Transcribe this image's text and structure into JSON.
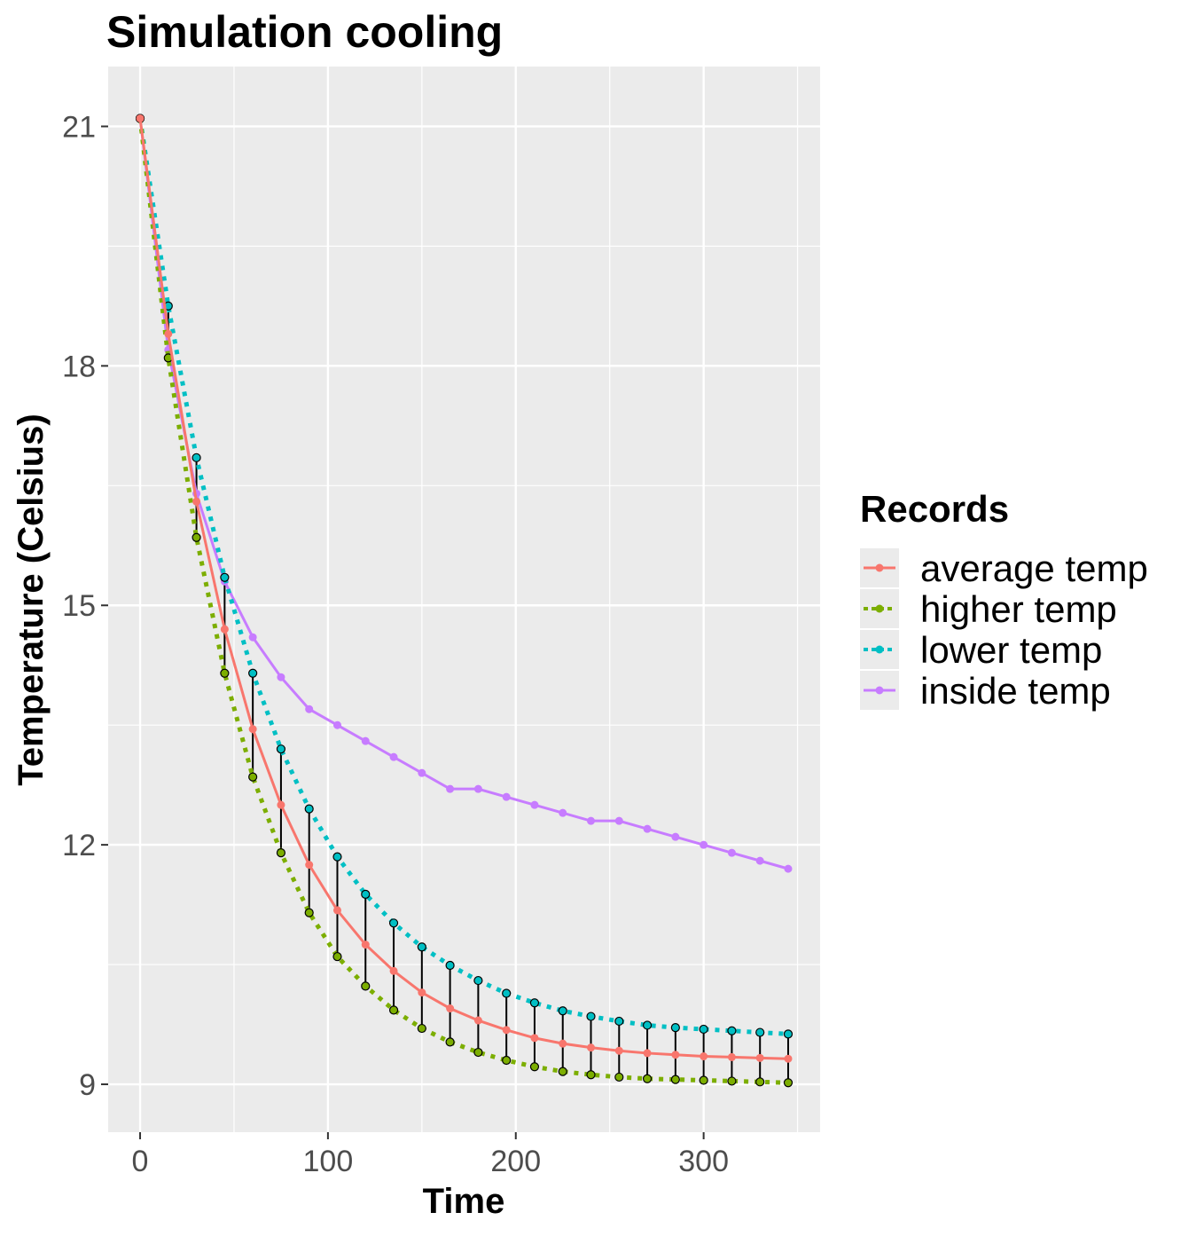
{
  "chart_data": {
    "type": "line",
    "title": "Simulation cooling",
    "xlabel": "Time",
    "ylabel": "Temperature (Celsius)",
    "xlim": [
      -17,
      362
    ],
    "ylim": [
      8.4,
      21.75
    ],
    "x_ticks": [
      0,
      100,
      200,
      300
    ],
    "y_ticks": [
      9,
      12,
      15,
      18,
      21
    ],
    "grid": true,
    "legend": {
      "title": "Records",
      "position": "right"
    },
    "x": [
      0,
      15,
      30,
      45,
      60,
      75,
      90,
      105,
      120,
      135,
      150,
      165,
      180,
      195,
      210,
      225,
      240,
      255,
      270,
      285,
      300,
      315,
      330,
      345
    ],
    "series": [
      {
        "name": "average temp",
        "color": "#f8766d",
        "style": "solid",
        "values": [
          21.1,
          18.4,
          16.3,
          14.7,
          13.45,
          12.5,
          11.75,
          11.18,
          10.75,
          10.42,
          10.15,
          9.95,
          9.8,
          9.68,
          9.58,
          9.51,
          9.46,
          9.42,
          9.39,
          9.37,
          9.35,
          9.34,
          9.33,
          9.32
        ]
      },
      {
        "name": "higher temp",
        "color": "#7cae00",
        "style": "dotted",
        "values": [
          21.1,
          18.1,
          15.85,
          14.15,
          12.85,
          11.9,
          11.15,
          10.6,
          10.23,
          9.93,
          9.7,
          9.53,
          9.4,
          9.3,
          9.22,
          9.16,
          9.12,
          9.09,
          9.07,
          9.06,
          9.05,
          9.04,
          9.03,
          9.02
        ]
      },
      {
        "name": "lower temp",
        "color": "#00bfc4",
        "style": "dotted",
        "values": [
          21.1,
          18.75,
          16.85,
          15.35,
          14.15,
          13.2,
          12.45,
          11.85,
          11.38,
          11.02,
          10.72,
          10.49,
          10.3,
          10.14,
          10.02,
          9.92,
          9.85,
          9.79,
          9.74,
          9.71,
          9.69,
          9.67,
          9.65,
          9.63
        ]
      },
      {
        "name": "inside temp",
        "color": "#c77cff",
        "style": "solid",
        "values": [
          21.1,
          18.2,
          16.4,
          15.3,
          14.6,
          14.1,
          13.7,
          13.5,
          13.3,
          13.1,
          12.9,
          12.7,
          12.7,
          12.6,
          12.5,
          12.4,
          12.3,
          12.3,
          12.2,
          12.1,
          12.0,
          11.9,
          11.8,
          11.7
        ]
      }
    ]
  }
}
